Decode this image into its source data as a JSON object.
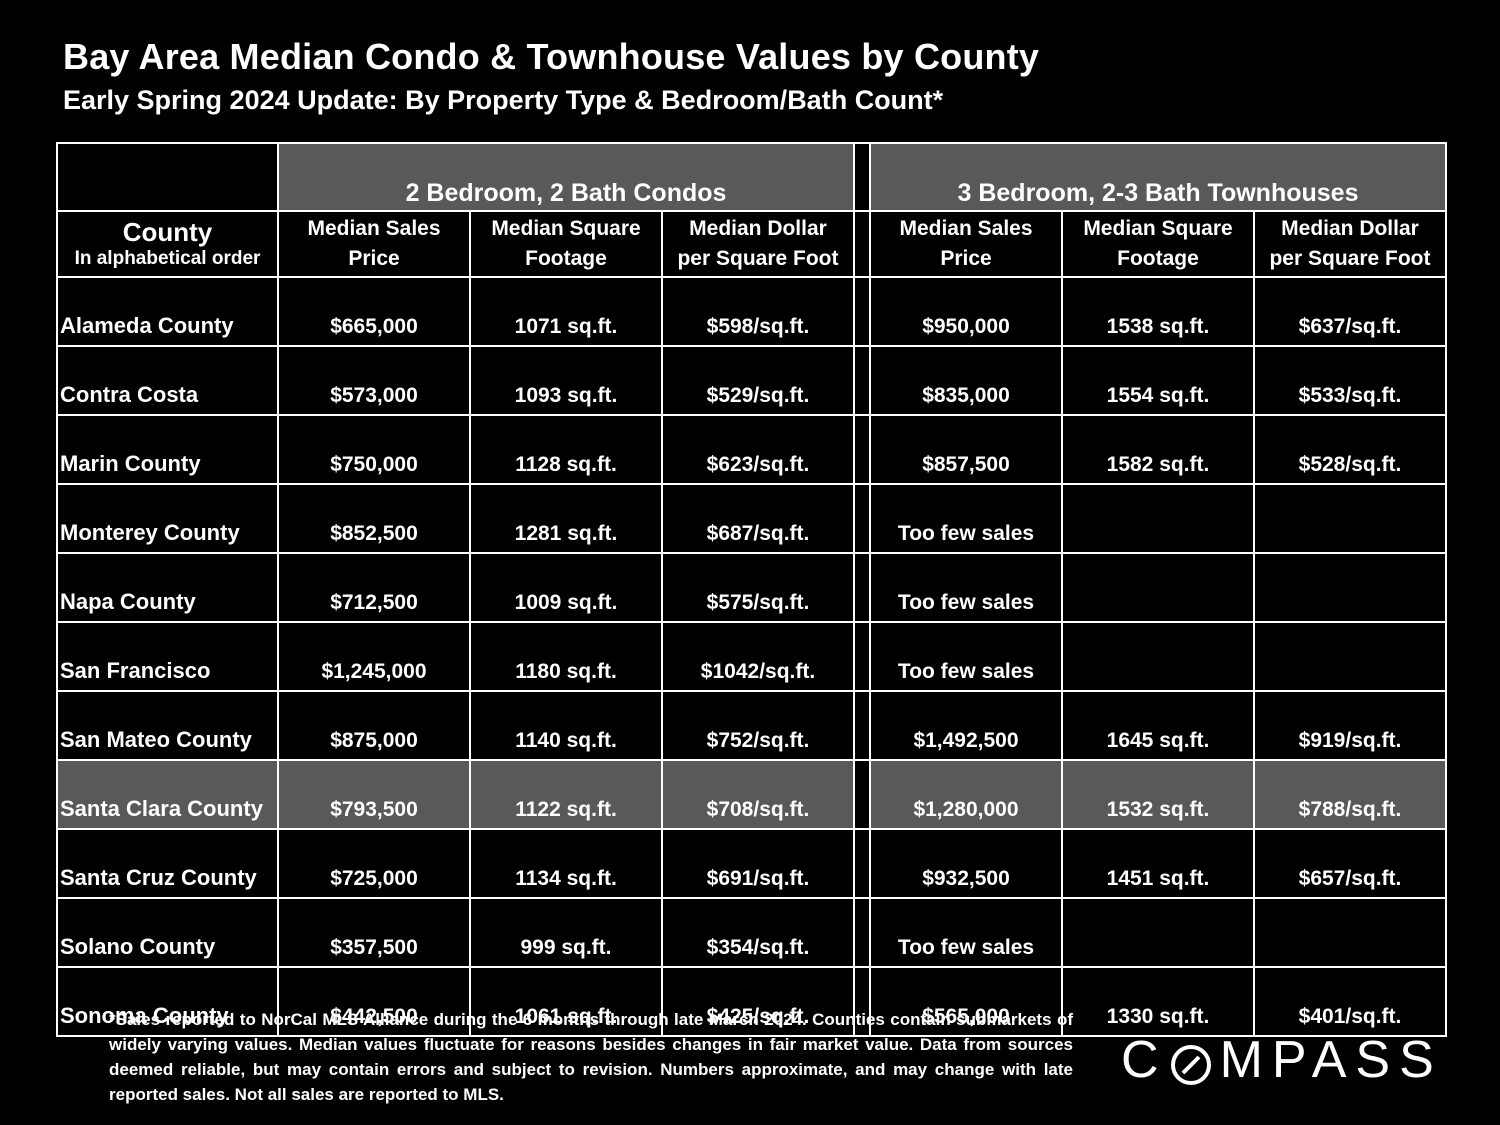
{
  "title": "Bay Area Median Condo & Townhouse Values by County",
  "subtitle": "Early Spring 2024 Update:  By Property Type & Bedroom/Bath Count*",
  "table": {
    "group_headers": [
      "2 Bedroom, 2 Bath Condos",
      "3 Bedroom, 2-3 Bath Townhouses"
    ],
    "county_header": "County",
    "county_subheader": "In alphabetical order",
    "column_headers": [
      [
        "Median Sales",
        "Price"
      ],
      [
        "Median Square",
        "Footage"
      ],
      [
        "Median Dollar",
        "per Square Foot"
      ],
      [
        "Median Sales",
        "Price"
      ],
      [
        "Median Square",
        "Footage"
      ],
      [
        "Median Dollar",
        "per Square Foot"
      ]
    ],
    "rows": [
      {
        "county": "Alameda County",
        "condo": [
          "$665,000",
          "1071 sq.ft.",
          "$598/sq.ft."
        ],
        "townhouse": [
          "$950,000",
          "1538 sq.ft.",
          "$637/sq.ft."
        ]
      },
      {
        "county": "Contra Costa",
        "condo": [
          "$573,000",
          "1093 sq.ft.",
          "$529/sq.ft."
        ],
        "townhouse": [
          "$835,000",
          "1554 sq.ft.",
          "$533/sq.ft."
        ]
      },
      {
        "county": "Marin County",
        "condo": [
          "$750,000",
          "1128 sq.ft.",
          "$623/sq.ft."
        ],
        "townhouse": [
          "$857,500",
          "1582 sq.ft.",
          "$528/sq.ft."
        ]
      },
      {
        "county": "Monterey County",
        "condo": [
          "$852,500",
          "1281 sq.ft.",
          "$687/sq.ft."
        ],
        "townhouse": [
          "Too few sales",
          "",
          ""
        ]
      },
      {
        "county": "Napa County",
        "condo": [
          "$712,500",
          "1009 sq.ft.",
          "$575/sq.ft."
        ],
        "townhouse": [
          "Too few sales",
          "",
          ""
        ]
      },
      {
        "county": "San Francisco",
        "condo": [
          "$1,245,000",
          "1180 sq.ft.",
          "$1042/sq.ft."
        ],
        "townhouse": [
          "Too few sales",
          "",
          ""
        ]
      },
      {
        "county": "San Mateo County",
        "condo": [
          "$875,000",
          "1140 sq.ft.",
          "$752/sq.ft."
        ],
        "townhouse": [
          "$1,492,500",
          "1645 sq.ft.",
          "$919/sq.ft."
        ]
      },
      {
        "county": "Santa Clara County",
        "condo": [
          "$793,500",
          "1122 sq.ft.",
          "$708/sq.ft."
        ],
        "townhouse": [
          "$1,280,000",
          "1532 sq.ft.",
          "$788/sq.ft."
        ],
        "highlight": true
      },
      {
        "county": "Santa Cruz County",
        "condo": [
          "$725,000",
          "1134 sq.ft.",
          "$691/sq.ft."
        ],
        "townhouse": [
          "$932,500",
          "1451 sq.ft.",
          "$657/sq.ft."
        ]
      },
      {
        "county": "Solano County",
        "condo": [
          "$357,500",
          "999 sq.ft.",
          "$354/sq.ft."
        ],
        "townhouse": [
          "Too few sales",
          "",
          ""
        ]
      },
      {
        "county": "Sonoma County",
        "condo": [
          "$442,500",
          "1061 sq.ft.",
          "$425/sq.ft."
        ],
        "townhouse": [
          "$565,000",
          "1330 sq.ft.",
          "$401/sq.ft."
        ]
      }
    ]
  },
  "footnote": "*Sales reported to NorCal MLS Alliance during the 6 months through late March 2024. Counties contain submarkets of widely varying values. Median values fluctuate for reasons besides changes in fair market value. Data from sources deemed reliable, but may contain errors and subject to revision.  Numbers approximate, and may change with late reported sales. Not all sales are reported to MLS.",
  "logo": {
    "prefix": "C",
    "suffix": "MPASS",
    "text": "COMPASS"
  }
}
